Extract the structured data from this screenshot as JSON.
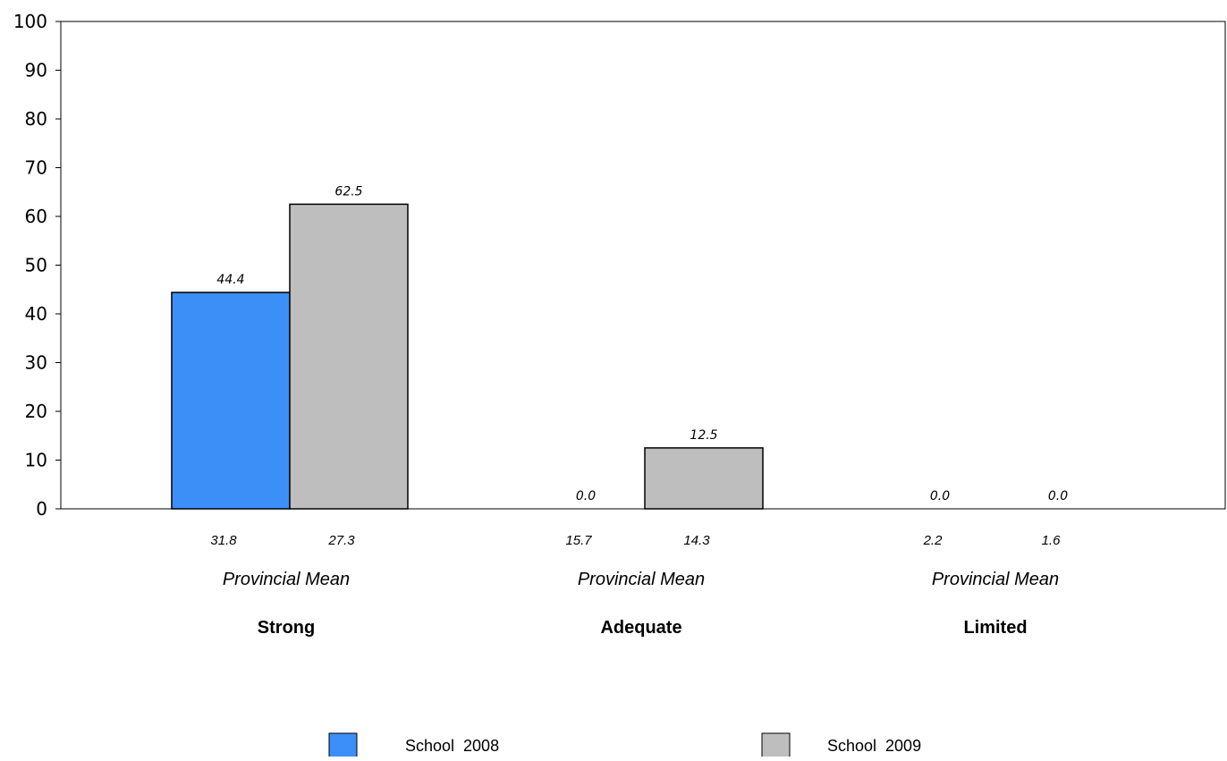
{
  "chart_data": {
    "type": "bar",
    "categories": [
      "Strong",
      "Adequate",
      "Limited"
    ],
    "category_sublabel": "Provincial Mean",
    "series": [
      {
        "name": "School 2008",
        "color": "#3d8ff8",
        "values": [
          44.4,
          0.0,
          0.0
        ],
        "value_labels": [
          "44.4",
          "0.0",
          "0.0"
        ],
        "provincial_mean": [
          "31.8",
          "15.7",
          "2.2"
        ]
      },
      {
        "name": "School 2009",
        "color": "#bebebe",
        "values": [
          62.5,
          12.5,
          0.0
        ],
        "value_labels": [
          "62.5",
          "12.5",
          "0.0"
        ],
        "provincial_mean": [
          "27.3",
          "14.3",
          "1.6"
        ]
      }
    ],
    "ylim": [
      0,
      100
    ],
    "yticks": [
      "0",
      "10",
      "20",
      "30",
      "40",
      "50",
      "60",
      "70",
      "80",
      "90",
      "100"
    ],
    "xlabel": "",
    "ylabel": "",
    "title": "",
    "grid": false,
    "legend": "bottom"
  }
}
